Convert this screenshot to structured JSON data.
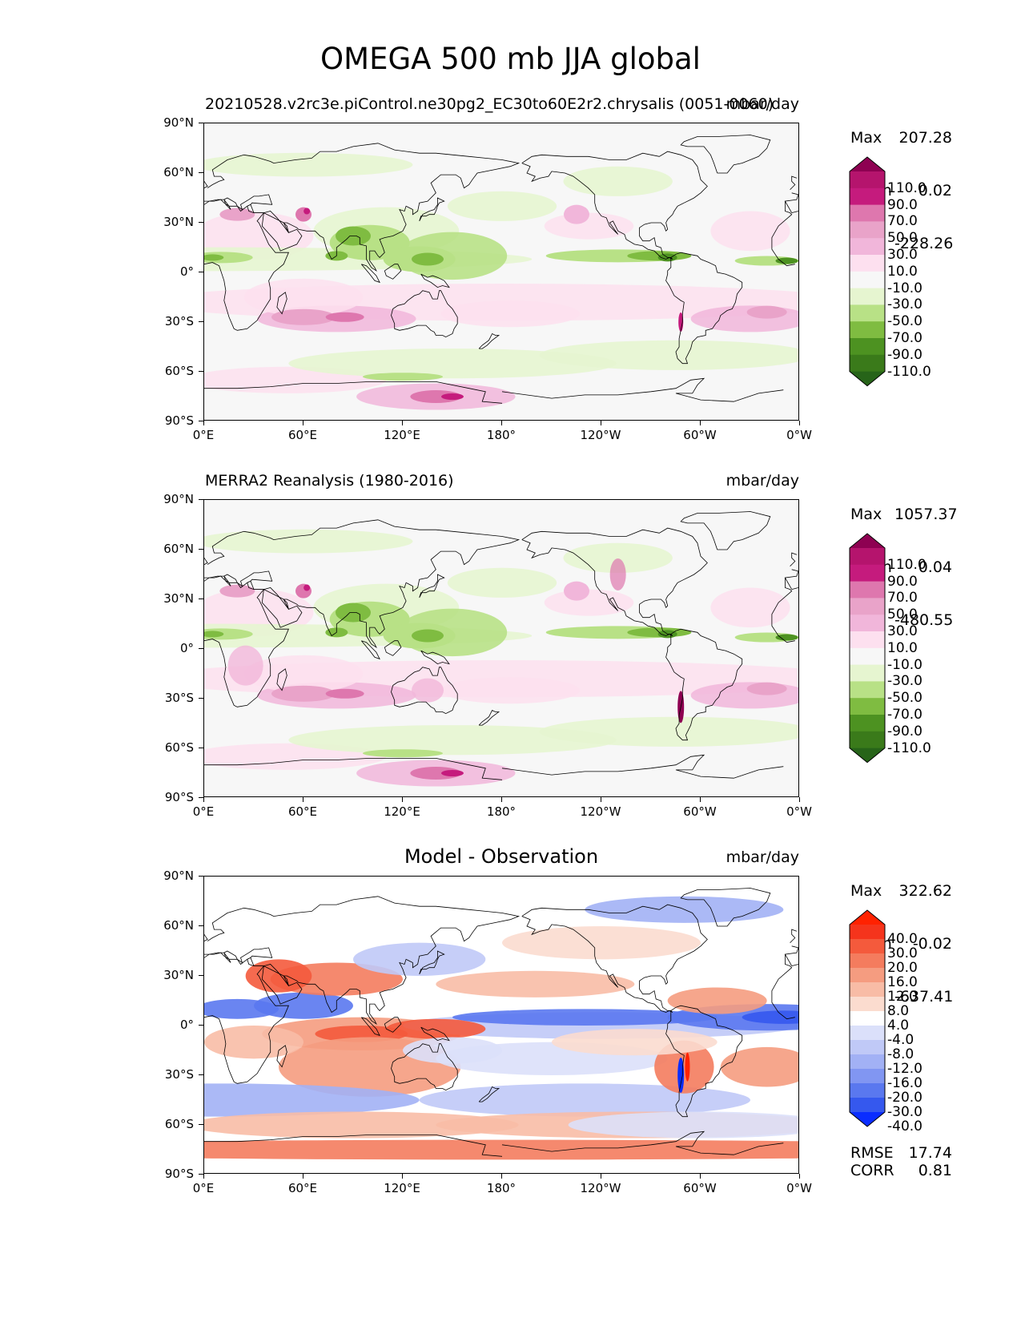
{
  "title": "OMEGA 500 mb JJA global",
  "x_ticks": [
    "0°E",
    "60°E",
    "120°E",
    "180°",
    "120°W",
    "60°W",
    "0°W"
  ],
  "y_ticks": [
    "90°N",
    "60°N",
    "30°N",
    "0°",
    "30°S",
    "60°S",
    "90°S"
  ],
  "panels": [
    {
      "subtitle_left": "20210528.v2rc3e.piControl.ne30pg2_EC30to60E2r2.chrysalis (0051-0060)",
      "subtitle_center": "",
      "units": "mbar/day",
      "stats": {
        "max_label": "Max",
        "max": "207.28",
        "mean_label": "Mean",
        "mean": "0.02",
        "min_label": "Min",
        "min": "-228.26"
      },
      "colorbar": {
        "labels": [
          "110.0",
          "90.0",
          "70.0",
          "50.0",
          "30.0",
          "10.0",
          "-10.0",
          "-30.0",
          "-50.0",
          "-70.0",
          "-90.0",
          "-110.0"
        ],
        "colors": [
          "#8e0152",
          "#b5146d",
          "#c51b7d",
          "#de77ae",
          "#e9a3c9",
          "#f1b6da",
          "#fde0ef",
          "#f7f7f7",
          "#e6f5d0",
          "#b8e186",
          "#7fbc41",
          "#4d9221",
          "#3a7a1a",
          "#276419"
        ]
      }
    },
    {
      "subtitle_left": "MERRA2 Reanalysis (1980-2016)",
      "subtitle_center": "",
      "units": "mbar/day",
      "stats": {
        "max_label": "Max",
        "max": "1057.37",
        "mean_label": "Mean",
        "mean": "0.04",
        "min_label": "Min",
        "min": "-480.55"
      },
      "colorbar": {
        "labels": [
          "110.0",
          "90.0",
          "70.0",
          "50.0",
          "30.0",
          "10.0",
          "-10.0",
          "-30.0",
          "-50.0",
          "-70.0",
          "-90.0",
          "-110.0"
        ],
        "colors": [
          "#8e0152",
          "#b5146d",
          "#c51b7d",
          "#de77ae",
          "#e9a3c9",
          "#f1b6da",
          "#fde0ef",
          "#f7f7f7",
          "#e6f5d0",
          "#b8e186",
          "#7fbc41",
          "#4d9221",
          "#3a7a1a",
          "#276419"
        ]
      }
    },
    {
      "subtitle_left": "",
      "subtitle_center": "Model - Observation",
      "units": "mbar/day",
      "stats": {
        "max_label": "Max",
        "max": "322.62",
        "mean_label": "Mean",
        "mean": "-0.02",
        "min_label": "Min",
        "min": "-637.41"
      },
      "colorbar": {
        "labels": [
          "40.0",
          "30.0",
          "20.0",
          "16.0",
          "12.0",
          "8.0",
          "4.0",
          "-4.0",
          "-8.0",
          "-12.0",
          "-16.0",
          "-20.0",
          "-30.0",
          "-40.0"
        ],
        "colors": [
          "#ff2200",
          "#f5341c",
          "#f45a3c",
          "#f47c5e",
          "#f59c80",
          "#f8bca6",
          "#fbdccf",
          "#ffffff",
          "#dbe0fa",
          "#c0c9f7",
          "#a2b1f5",
          "#8196f2",
          "#5a78ef",
          "#3558ee",
          "#0a2dff"
        ]
      },
      "footer": {
        "rmse_label": "RMSE",
        "rmse": "17.74",
        "corr_label": "CORR",
        "corr": "0.81"
      }
    }
  ]
}
